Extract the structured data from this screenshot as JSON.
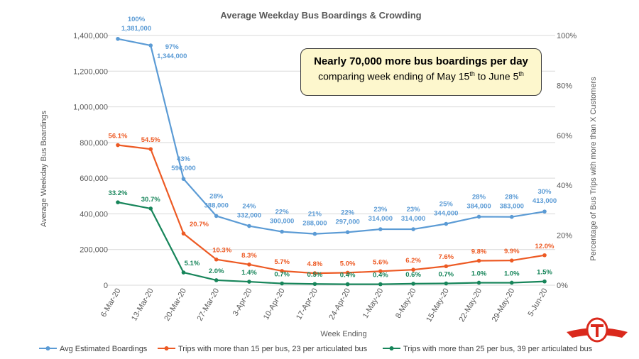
{
  "callout": {
    "line1": "Nearly 70,000 more bus boardings per day",
    "line2_a": "comparing week ending of May 15",
    "line2_sup1": "th",
    "line2_b": " to June 5",
    "line2_sup2": "th"
  },
  "colors": {
    "boardings": "#5b9bd5",
    "over15": "#ed5a24",
    "over25": "#17855a",
    "grid": "#d9d9d9",
    "logo": "#da291c"
  },
  "logo": {
    "icon": "ttc-logo-icon"
  },
  "chart_data": {
    "type": "line",
    "title": "Average Weekday Bus Boardings & Crowding",
    "xlabel": "Week Ending",
    "ylabel": "Average Weekday Bus Boardings",
    "y2label": "Percentage of Bus Trips with more than X Customers",
    "ylim": [
      0,
      1400000
    ],
    "y2lim": [
      0,
      100
    ],
    "yticks": [
      "0",
      "200,000",
      "400,000",
      "600,000",
      "800,000",
      "1,000,000",
      "1,200,000",
      "1,400,000"
    ],
    "y2ticks": [
      "0%",
      "20%",
      "40%",
      "60%",
      "80%",
      "100%"
    ],
    "categories": [
      "6-Mar-20",
      "13-Mar-20",
      "20-Mar-20",
      "27-Mar-20",
      "3-Apr-20",
      "10-Apr-20",
      "17-Apr-20",
      "24-Apr-20",
      "1-May-20",
      "8-May-20",
      "15-May-20",
      "22-May-20",
      "29-May-20",
      "5-Jun-20"
    ],
    "series": [
      {
        "name": "Avg Estimated Boardings",
        "axis": "left",
        "values": [
          1381000,
          1344000,
          596000,
          388000,
          332000,
          300000,
          288000,
          297000,
          314000,
          314000,
          344000,
          384000,
          383000,
          413000
        ],
        "value_labels": [
          "1,381,000",
          "1,344,000",
          "596,000",
          "388,000",
          "332,000",
          "300,000",
          "288,000",
          "297,000",
          "314,000",
          "314,000",
          "344,000",
          "384,000",
          "383,000",
          "413,000"
        ],
        "pct_labels": [
          "100%",
          "97%",
          "43%",
          "28%",
          "24%",
          "22%",
          "21%",
          "22%",
          "23%",
          "23%",
          "25%",
          "28%",
          "28%",
          "30%"
        ]
      },
      {
        "name": "Trips with more than 15 per bus, 23 per articulated bus",
        "axis": "right",
        "values": [
          56.1,
          54.5,
          20.7,
          10.3,
          8.3,
          5.7,
          4.8,
          5.0,
          5.6,
          6.2,
          7.6,
          9.8,
          9.9,
          12.0
        ],
        "labels": [
          "56.1%",
          "54.5%",
          "20.7%",
          "10.3%",
          "8.3%",
          "5.7%",
          "4.8%",
          "5.0%",
          "5.6%",
          "6.2%",
          "7.6%",
          "9.8%",
          "9.9%",
          "12.0%"
        ]
      },
      {
        "name": "Trips with more than 25 per bus, 39 per articulated bus",
        "axis": "right",
        "values": [
          33.2,
          30.7,
          5.1,
          2.0,
          1.4,
          0.7,
          0.5,
          0.4,
          0.4,
          0.6,
          0.7,
          1.0,
          1.0,
          1.5
        ],
        "labels": [
          "33.2%",
          "30.7%",
          "5.1%",
          "2.0%",
          "1.4%",
          "0.7%",
          "0.5%",
          "0.4%",
          "0.4%",
          "0.6%",
          "0.7%",
          "1.0%",
          "1.0%",
          "1.5%"
        ]
      }
    ]
  }
}
